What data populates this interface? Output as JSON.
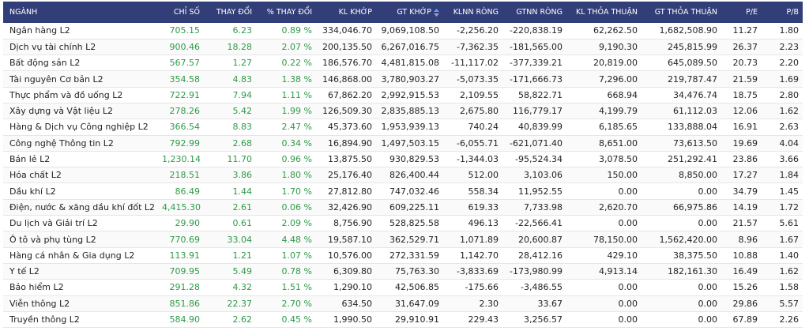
{
  "table": {
    "headers": [
      "NGÀNH",
      "CHỈ SỐ",
      "THAY ĐỔI",
      "% THAY ĐỔI",
      "KL KHỚP",
      "GT KHỚP",
      "KLNN RÒNG",
      "GTNN RÒNG",
      "KL THỎA THUẬN",
      "GT THỎA THUẬN",
      "P/E",
      "P/B"
    ],
    "rows": [
      [
        "Ngân hàng L2",
        "705.15",
        "6.23",
        "0.89 %",
        "334,046.70",
        "9,069,108.50",
        "-2,256.20",
        "-220,838.19",
        "62,262.50",
        "1,682,508.90",
        "11.27",
        "1.80"
      ],
      [
        "Dịch vụ tài chính L2",
        "900.46",
        "18.28",
        "2.07 %",
        "200,135.50",
        "6,267,016.75",
        "-7,362.35",
        "-181,565.00",
        "9,190.30",
        "245,815.99",
        "26.37",
        "2.23"
      ],
      [
        "Bất động sản L2",
        "567.57",
        "1.27",
        "0.22 %",
        "186,576.70",
        "4,481,815.08",
        "-11,117.02",
        "-377,339.21",
        "20,819.00",
        "645,089.50",
        "20.73",
        "2.20"
      ],
      [
        "Tài nguyên Cơ bản L2",
        "354.58",
        "4.83",
        "1.38 %",
        "146,868.00",
        "3,780,903.27",
        "-5,073.35",
        "-171,666.73",
        "7,296.00",
        "219,787.47",
        "21.59",
        "1.69"
      ],
      [
        "Thực phẩm và đồ uống L2",
        "722.91",
        "7.94",
        "1.11 %",
        "67,862.20",
        "2,992,915.53",
        "2,109.55",
        "58,822.71",
        "668.94",
        "34,476.74",
        "18.75",
        "2.80"
      ],
      [
        "Xây dựng và Vật liệu L2",
        "278.26",
        "5.42",
        "1.99 %",
        "126,509.30",
        "2,835,885.13",
        "2,675.80",
        "116,779.17",
        "4,199.79",
        "61,112.03",
        "12.06",
        "1.62"
      ],
      [
        "Hàng & Dịch vụ Công nghiệp L2",
        "366.54",
        "8.83",
        "2.47 %",
        "45,373.60",
        "1,953,939.13",
        "740.24",
        "40,839.99",
        "6,185.65",
        "133,888.04",
        "16.91",
        "2.63"
      ],
      [
        "Công nghệ Thông tin L2",
        "792.99",
        "2.68",
        "0.34 %",
        "16,894.90",
        "1,497,503.15",
        "-6,055.71",
        "-621,071.40",
        "8,651.00",
        "73,613.50",
        "19.69",
        "4.04"
      ],
      [
        "Bán lẻ L2",
        "1,230.14",
        "11.70",
        "0.96 %",
        "13,875.50",
        "930,829.53",
        "-1,344.03",
        "-95,524.34",
        "3,078.50",
        "251,292.41",
        "23.86",
        "3.66"
      ],
      [
        "Hóa chất L2",
        "218.51",
        "3.86",
        "1.80 %",
        "25,176.40",
        "826,400.44",
        "512.00",
        "3,103.06",
        "150.00",
        "8,850.00",
        "17.27",
        "1.84"
      ],
      [
        "Dầu khí L2",
        "86.49",
        "1.44",
        "1.70 %",
        "27,812.80",
        "747,032.46",
        "558.34",
        "11,952.55",
        "0.00",
        "0.00",
        "34.79",
        "1.45"
      ],
      [
        "Điện, nước & xăng dầu khí đốt L2",
        "4,415.30",
        "2.61",
        "0.06 %",
        "32,426.90",
        "609,225.11",
        "619.33",
        "7,733.98",
        "2,620.70",
        "66,975.86",
        "14.19",
        "1.72"
      ],
      [
        "Du lịch và Giải trí L2",
        "29.90",
        "0.61",
        "2.09 %",
        "8,756.90",
        "528,825.58",
        "496.13",
        "-22,566.41",
        "0.00",
        "0.00",
        "21.57",
        "5.61"
      ],
      [
        "Ô tô và phụ tùng L2",
        "770.69",
        "33.04",
        "4.48 %",
        "19,587.10",
        "362,529.71",
        "1,071.89",
        "20,600.87",
        "78,150.00",
        "1,562,420.00",
        "8.96",
        "1.67"
      ],
      [
        "Hàng cá nhân & Gia dụng L2",
        "113.91",
        "1.21",
        "1.07 %",
        "10,576.00",
        "272,331.59",
        "1,142.70",
        "28,412.16",
        "429.10",
        "38,375.50",
        "10.88",
        "1.40"
      ],
      [
        "Y tế L2",
        "709.95",
        "5.49",
        "0.78 %",
        "6,309.80",
        "75,763.30",
        "-3,833.69",
        "-173,980.99",
        "4,913.14",
        "182,161.30",
        "16.49",
        "1.62"
      ],
      [
        "Bảo hiểm L2",
        "291.28",
        "4.32",
        "1.51 %",
        "1,290.10",
        "42,506.85",
        "-175.66",
        "-3,486.55",
        "0.00",
        "0.00",
        "15.26",
        "1.58"
      ],
      [
        "Viễn thông L2",
        "851.86",
        "22.37",
        "2.70 %",
        "634.50",
        "31,647.09",
        "2.30",
        "33.67",
        "0.00",
        "0.00",
        "29.86",
        "5.57"
      ],
      [
        "Truyền thông L2",
        "584.90",
        "2.62",
        "0.45 %",
        "1,990.50",
        "29,910.91",
        "229.43",
        "3,256.57",
        "0.00",
        "0.00",
        "67.89",
        "2.26"
      ]
    ]
  }
}
